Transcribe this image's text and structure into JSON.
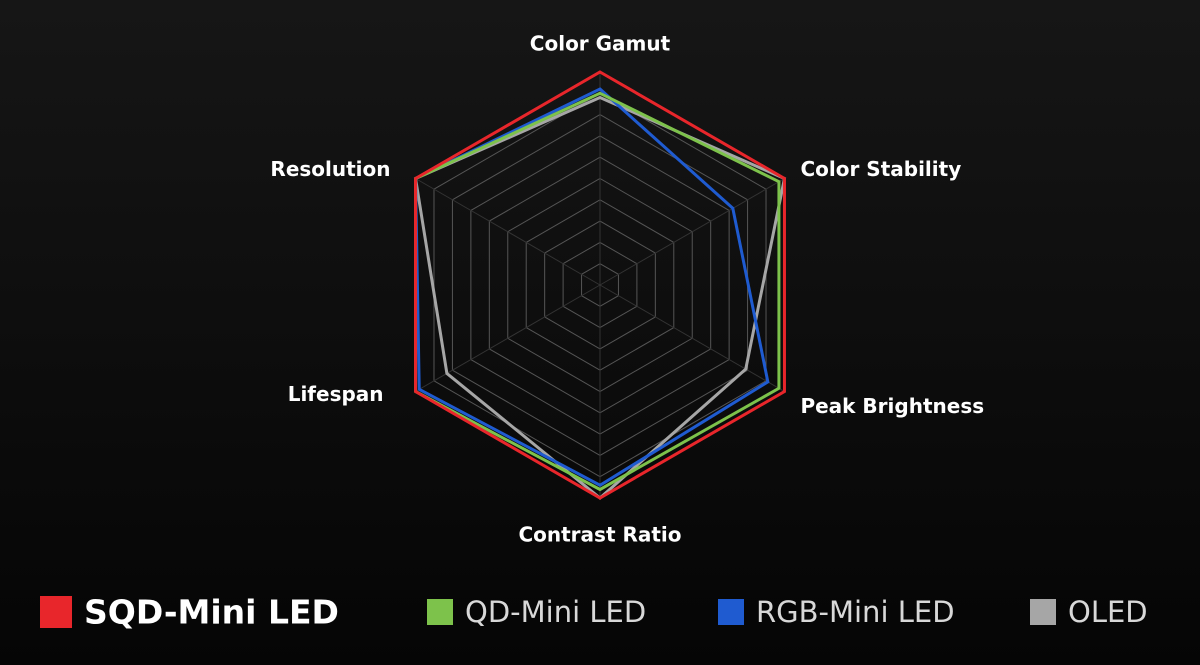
{
  "chart_data": {
    "type": "radar",
    "categories": [
      "Color Gamut",
      "Color Stability",
      "Peak Brightness",
      "Contrast Ratio",
      "Lifespan",
      "Resolution"
    ],
    "series": [
      {
        "name": "SQD-Mini LED",
        "color": "#e8262b",
        "values": [
          100,
          100,
          100,
          100,
          100,
          100
        ]
      },
      {
        "name": "QD-Mini LED",
        "color": "#7dc24b",
        "values": [
          90,
          97,
          97,
          96,
          100,
          100
        ]
      },
      {
        "name": "RGB-Mini LED",
        "color": "#1f5bd0",
        "values": [
          92,
          72,
          91,
          94,
          98,
          100
        ]
      },
      {
        "name": "OLED",
        "color": "#a6a6a6",
        "values": [
          88,
          100,
          79,
          100,
          83,
          100
        ]
      }
    ],
    "rlim": [
      0,
      100
    ],
    "rticks": [
      10,
      20,
      30,
      40,
      50,
      60,
      70,
      80,
      90,
      100
    ],
    "grid": true
  }
}
